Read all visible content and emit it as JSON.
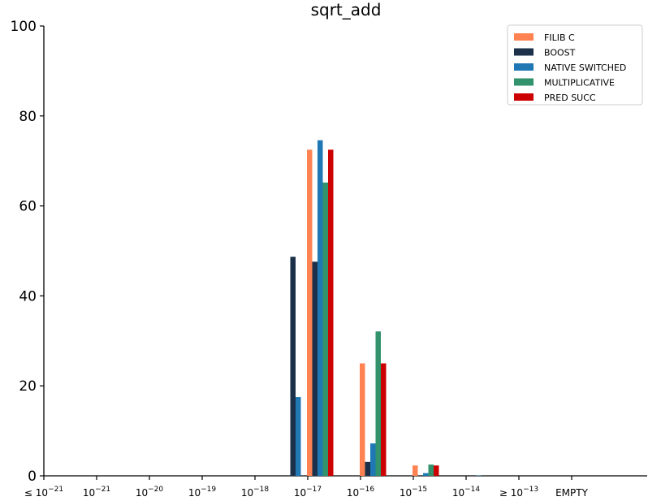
{
  "chart_data": {
    "type": "bar",
    "title": "sqrt_add",
    "xlabel": "",
    "ylabel": "",
    "ylim": [
      0,
      100
    ],
    "yticks": [
      "0",
      "20",
      "40",
      "60",
      "80",
      "100"
    ],
    "categories": [
      {
        "label": "≤ 10",
        "exp": "−21"
      },
      {
        "label": "10",
        "exp": "−21"
      },
      {
        "label": "10",
        "exp": "−20"
      },
      {
        "label": "10",
        "exp": "−19"
      },
      {
        "label": "10",
        "exp": "−18"
      },
      {
        "label": "10",
        "exp": "−17"
      },
      {
        "label": "10",
        "exp": "−16"
      },
      {
        "label": "10",
        "exp": "−15"
      },
      {
        "label": "10",
        "exp": "−14"
      },
      {
        "label": "≥ 10",
        "exp": "−13"
      },
      {
        "label": "EMPTY",
        "exp": ""
      }
    ],
    "legend_position": "top-right",
    "grid": false,
    "series": [
      {
        "name": "FILIB C",
        "color": "#ff8352",
        "values": [
          0,
          0,
          0,
          0,
          0,
          72.5,
          25,
          2.3,
          0,
          0,
          0
        ]
      },
      {
        "name": "BOOST",
        "color": "#1c3049",
        "values": [
          0,
          0,
          0,
          0,
          48.7,
          47.6,
          3.1,
          0,
          0,
          0,
          0
        ]
      },
      {
        "name": "NATIVE SWITCHED",
        "color": "#1f78b4",
        "values": [
          0,
          0,
          0,
          0,
          17.5,
          74.6,
          7.2,
          0.6,
          0.1,
          0,
          0
        ]
      },
      {
        "name": "MULTIPLICATIVE",
        "color": "#31926b",
        "values": [
          0,
          0,
          0,
          0,
          0,
          65.2,
          32.1,
          2.5,
          0,
          0,
          0
        ]
      },
      {
        "name": "PRED SUCC",
        "color": "#cc0000",
        "values": [
          0,
          0,
          0,
          0,
          0,
          72.5,
          25,
          2.3,
          0,
          0,
          0
        ]
      }
    ]
  }
}
